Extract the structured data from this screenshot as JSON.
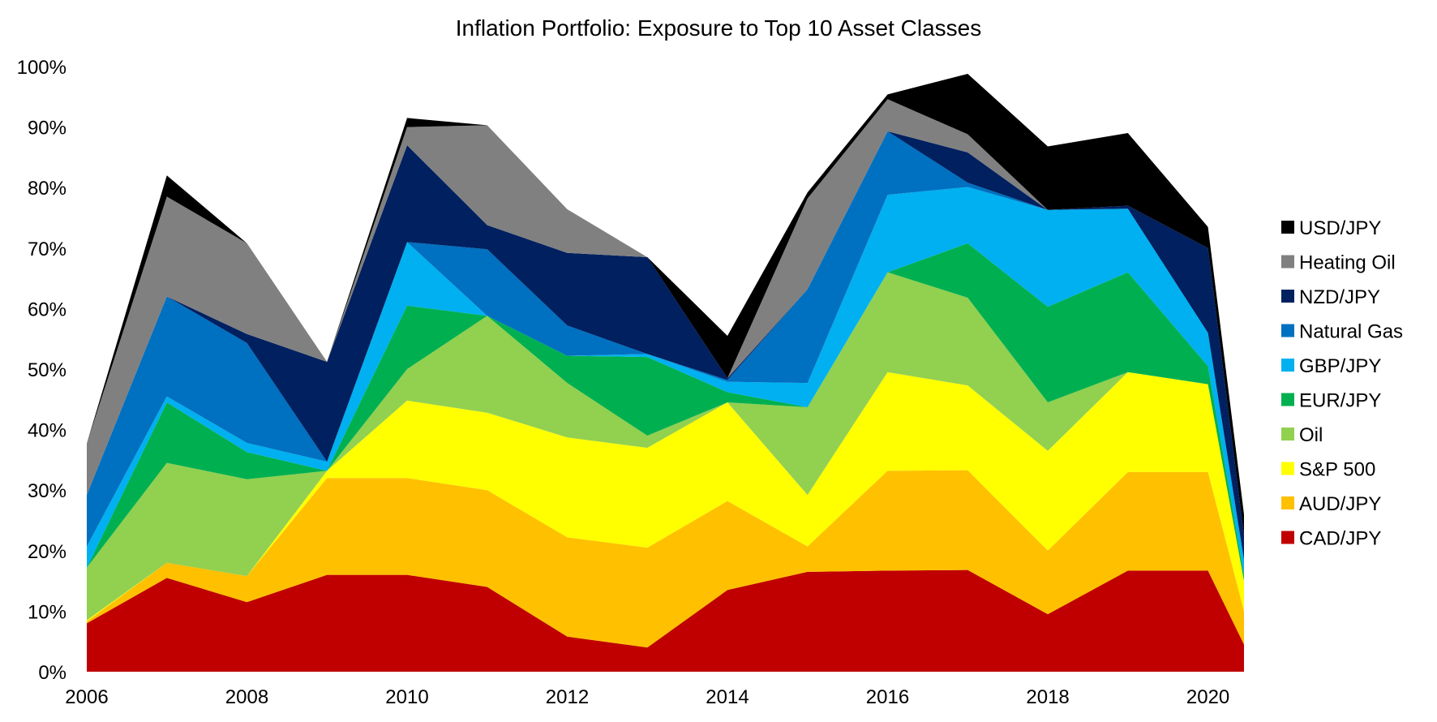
{
  "chart_data": {
    "type": "area",
    "title": "Inflation Portfolio: Exposure to Top 10 Asset Classes",
    "xlabel": "",
    "ylabel": "",
    "x": [
      2006,
      2007,
      2008,
      2009,
      2010,
      2011,
      2012,
      2013,
      2014,
      2015,
      2016,
      2017,
      2018,
      2019,
      2020,
      2020.45
    ],
    "xlim": [
      2006,
      2020.45
    ],
    "ylim": [
      0,
      100
    ],
    "x_ticks": [
      2006,
      2008,
      2010,
      2012,
      2014,
      2016,
      2018,
      2020
    ],
    "x_tick_labels": [
      "2006",
      "2008",
      "2010",
      "2012",
      "2014",
      "2016",
      "2018",
      "2020"
    ],
    "y_ticks": [
      0,
      10,
      20,
      30,
      40,
      50,
      60,
      70,
      80,
      90,
      100
    ],
    "y_tick_labels": [
      "0%",
      "10%",
      "20%",
      "30%",
      "40%",
      "50%",
      "60%",
      "70%",
      "80%",
      "90%",
      "100%"
    ],
    "grid": false,
    "stacked": true,
    "legend_position": "right",
    "series": [
      {
        "name": "CAD/JPY",
        "color": "#C00000",
        "values": [
          8,
          15.5,
          11.5,
          16,
          16,
          14,
          5.8,
          4,
          13.5,
          16.5,
          16.7,
          16.8,
          9.5,
          16.7,
          16.7,
          4.5
        ]
      },
      {
        "name": "AUD/JPY",
        "color": "#FFC000",
        "values": [
          0.3,
          2.5,
          4.3,
          16,
          16,
          16,
          16.4,
          16.5,
          14.7,
          4.2,
          16.5,
          16.5,
          10.5,
          16.3,
          16.3,
          5.5
        ]
      },
      {
        "name": "S&P 500",
        "color": "#FFFF00",
        "values": [
          0.2,
          0,
          0,
          1.2,
          12.8,
          12.8,
          16.5,
          16.5,
          16.3,
          8.5,
          16.3,
          14,
          16.5,
          16.5,
          14.5,
          5
        ]
      },
      {
        "name": "Oil",
        "color": "#92D050",
        "values": [
          8.7,
          16.5,
          16,
          0,
          5.2,
          16,
          9,
          2,
          0,
          14.5,
          16.5,
          14.5,
          8,
          0,
          0,
          0
        ]
      },
      {
        "name": "EUR/JPY",
        "color": "#00B050",
        "values": [
          0,
          10,
          4.5,
          0,
          10.5,
          0,
          4.5,
          13,
          1.7,
          0,
          0,
          9,
          15.8,
          16.5,
          3,
          1
        ]
      },
      {
        "name": "GBP/JPY",
        "color": "#00B0F0",
        "values": [
          3.5,
          1,
          1.5,
          1.5,
          10.5,
          0,
          0,
          0.5,
          1.7,
          4,
          12.8,
          9.3,
          16,
          10.5,
          5.5,
          2.5
        ]
      },
      {
        "name": "Natural Gas",
        "color": "#0070C0",
        "values": [
          8.5,
          16.5,
          16.5,
          0,
          0,
          11,
          5,
          0,
          0.3,
          15.5,
          10.5,
          0.7,
          0,
          0,
          0,
          0
        ]
      },
      {
        "name": "NZD/JPY",
        "color": "#002060",
        "values": [
          0,
          0,
          1.5,
          16.5,
          16,
          4,
          12,
          16,
          0.3,
          0,
          0,
          5,
          0,
          0.5,
          14,
          4
        ]
      },
      {
        "name": "Heating Oil",
        "color": "#808080",
        "values": [
          8.5,
          16.5,
          15,
          0,
          3,
          16.5,
          7.2,
          0,
          0,
          15,
          5.3,
          3,
          0,
          0,
          0,
          0
        ]
      },
      {
        "name": "USD/JPY",
        "color": "#000000",
        "values": [
          0,
          3.5,
          0,
          0,
          1.5,
          0,
          0,
          0,
          7,
          1,
          0.8,
          10,
          10.5,
          12,
          3.5,
          3.5
        ]
      }
    ]
  }
}
